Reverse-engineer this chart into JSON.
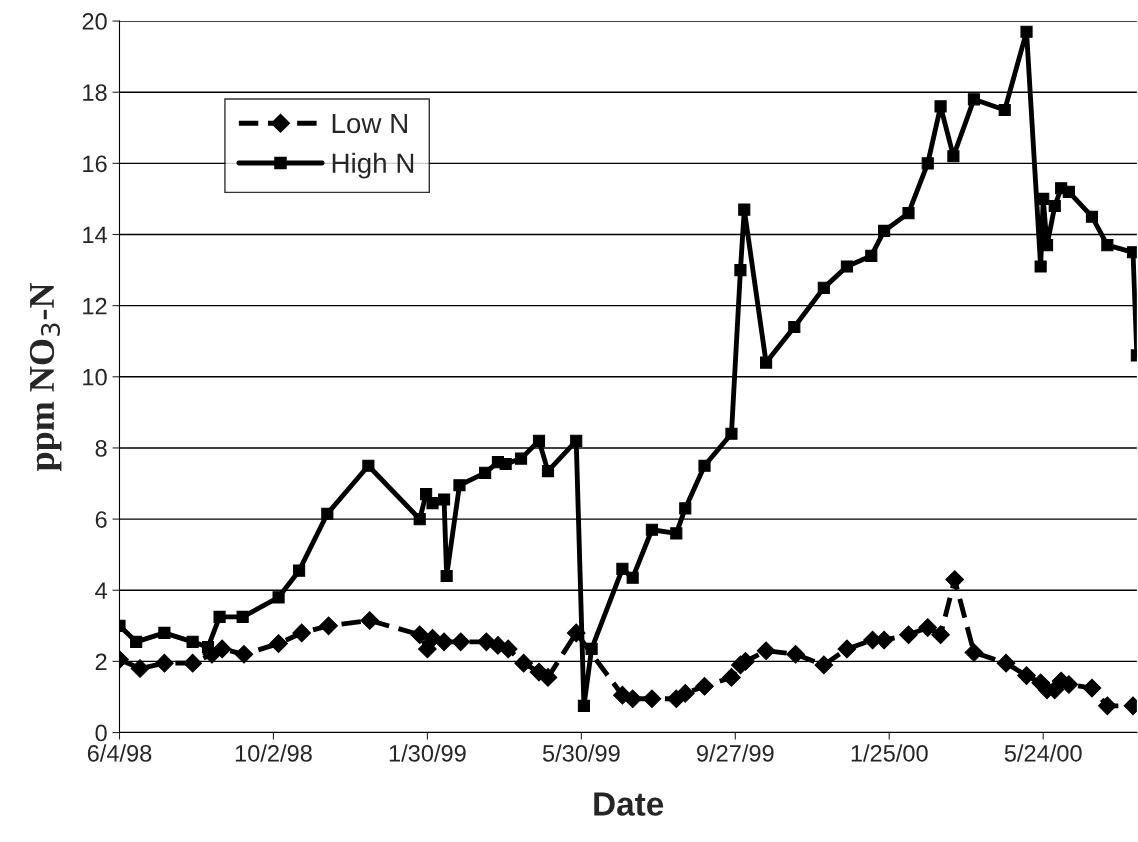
{
  "chart_data": {
    "type": "line",
    "xlabel": "Date",
    "ylabel": "ppm NO$_{3}$-N",
    "xlim": [
      "1998-06-04",
      "2000-08-05"
    ],
    "ylim": [
      0,
      20
    ],
    "xticks": [
      {
        "value": "1998-06-04",
        "label": "6/4/98"
      },
      {
        "value": "1998-10-02",
        "label": "10/2/98"
      },
      {
        "value": "1999-01-30",
        "label": "1/30/99"
      },
      {
        "value": "1999-05-30",
        "label": "5/30/99"
      },
      {
        "value": "1999-09-27",
        "label": "9/27/99"
      },
      {
        "value": "2000-01-25",
        "label": "1/25/00"
      },
      {
        "value": "2000-05-24",
        "label": "5/24/00"
      }
    ],
    "yticks": [
      0,
      2,
      4,
      6,
      8,
      10,
      12,
      14,
      16,
      18,
      20
    ],
    "grid": "y",
    "legend": "top left",
    "series": [
      {
        "name": "Low N",
        "color": "#000000",
        "marker": "diamond",
        "line_style": "dashed",
        "x": [
          "1998-06-04",
          "1998-06-20",
          "1998-07-09",
          "1998-07-31",
          "1998-08-15",
          "1998-08-23",
          "1998-09-09",
          "1998-10-06",
          "1998-10-24",
          "1998-11-14",
          "1998-12-16",
          "1999-01-24",
          "1999-01-30",
          "1999-02-03",
          "1999-02-12",
          "1999-02-25",
          "1999-03-17",
          "1999-03-26",
          "1999-04-03",
          "1999-04-15",
          "1999-04-27",
          "1999-05-04",
          "1999-05-26",
          "1999-07-01",
          "1999-07-09",
          "1999-07-24",
          "1999-08-12",
          "1999-08-19",
          "1999-09-03",
          "1999-09-24",
          "1999-10-01",
          "1999-10-05",
          "1999-10-21",
          "1999-11-13",
          "1999-12-05",
          "1999-12-23",
          "2000-01-12",
          "2000-01-21",
          "2000-02-09",
          "2000-02-24",
          "2000-03-05",
          "2000-03-16",
          "2000-03-31",
          "2000-04-25",
          "2000-05-11",
          "2000-05-22",
          "2000-05-27",
          "2000-06-02",
          "2000-06-07",
          "2000-06-13",
          "2000-07-01",
          "2000-07-13",
          "2000-08-02"
        ],
        "values": [
          2.05,
          1.8,
          1.95,
          1.95,
          2.2,
          2.35,
          2.2,
          2.5,
          2.8,
          3.0,
          3.15,
          2.75,
          2.35,
          2.65,
          2.55,
          2.55,
          2.55,
          2.45,
          2.35,
          1.95,
          1.7,
          1.55,
          2.8,
          1.05,
          0.95,
          0.95,
          0.95,
          1.1,
          1.3,
          1.55,
          1.9,
          2.0,
          2.3,
          2.2,
          1.9,
          2.35,
          2.6,
          2.6,
          2.75,
          2.95,
          2.75,
          4.3,
          2.25,
          1.95,
          1.6,
          1.4,
          1.2,
          1.2,
          1.45,
          1.35,
          1.25,
          0.75,
          0.75
        ]
      },
      {
        "name": "High N",
        "color": "#000000",
        "marker": "square",
        "line_style": "solid",
        "x": [
          "1998-06-04",
          "1998-06-17",
          "1998-07-09",
          "1998-07-31",
          "1998-08-12",
          "1998-08-21",
          "1998-09-08",
          "1998-10-06",
          "1998-10-22",
          "1998-11-13",
          "1998-12-15",
          "1999-01-24",
          "1999-01-29",
          "1999-02-03",
          "1999-02-12",
          "1999-02-14",
          "1999-02-24",
          "1999-03-16",
          "1999-03-26",
          "1999-04-01",
          "1999-04-13",
          "1999-04-27",
          "1999-05-04",
          "1999-05-26",
          "1999-06-01",
          "1999-06-07",
          "1999-07-01",
          "1999-07-09",
          "1999-07-24",
          "1999-08-12",
          "1999-08-19",
          "1999-09-03",
          "1999-09-24",
          "1999-10-01",
          "1999-10-04",
          "1999-10-21",
          "1999-11-12",
          "1999-12-05",
          "1999-12-23",
          "2000-01-11",
          "2000-01-21",
          "2000-02-09",
          "2000-02-24",
          "2000-03-05",
          "2000-03-15",
          "2000-03-31",
          "2000-04-24",
          "2000-05-11",
          "2000-05-22",
          "2000-05-24",
          "2000-05-27",
          "2000-06-02",
          "2000-06-07",
          "2000-06-13",
          "2000-07-01",
          "2000-07-13",
          "2000-08-02",
          "2000-08-05"
        ],
        "values": [
          3.0,
          2.55,
          2.8,
          2.55,
          2.4,
          3.25,
          3.25,
          3.8,
          4.55,
          6.15,
          7.5,
          6.0,
          6.7,
          6.45,
          6.55,
          4.4,
          6.95,
          7.3,
          7.6,
          7.55,
          7.7,
          8.2,
          7.35,
          8.2,
          0.75,
          2.35,
          4.6,
          4.35,
          5.7,
          5.6,
          6.3,
          7.5,
          8.4,
          13.0,
          14.7,
          10.4,
          11.4,
          12.5,
          13.1,
          13.4,
          14.1,
          14.6,
          16.0,
          17.6,
          16.2,
          17.8,
          17.5,
          19.7,
          13.1,
          15.0,
          13.7,
          14.8,
          15.3,
          15.2,
          14.5,
          13.7,
          13.5,
          10.6
        ]
      }
    ]
  }
}
